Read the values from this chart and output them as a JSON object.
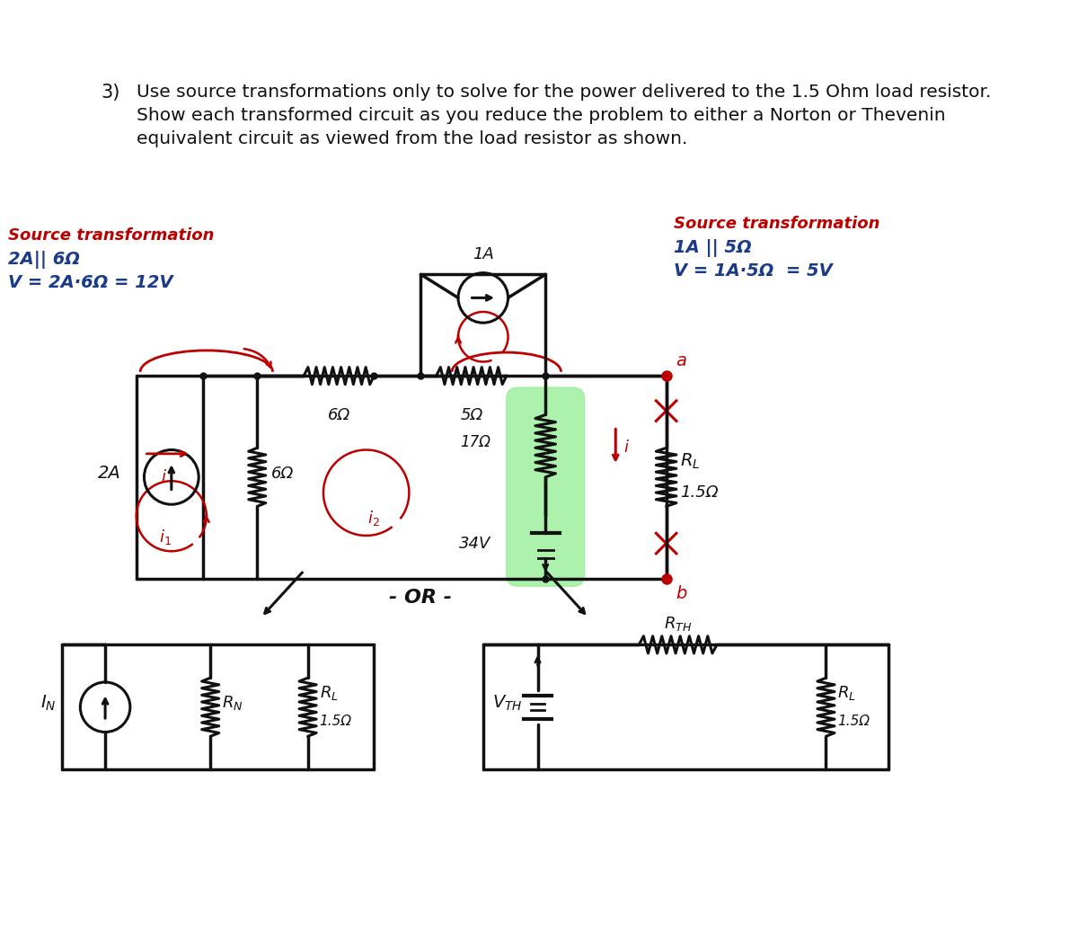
{
  "bg_color": "#ffffff",
  "title_number": "3)",
  "title_line1": "Use source transformations only to solve for the power delivered to the 1.5 Ohm load resistor.",
  "title_line2": "Show each transformed circuit as you reduce the problem to either a Norton or Thevenin",
  "title_line3": "equivalent circuit as viewed from the load resistor as shown.",
  "left_label1": "Source transformation",
  "left_label2": "2A|| 6Ω",
  "left_label3": "V = 2A·6Ω = 12V",
  "right_label1": "Source transformation",
  "right_label2": "1A || 5Ω",
  "right_label3": "V = 1A·5Ω  = 5V",
  "red_color": "#BB0000",
  "blue_color": "#1a3a8a",
  "black_color": "#111111",
  "green_color": "#90EE90",
  "or_label": "- OR -"
}
